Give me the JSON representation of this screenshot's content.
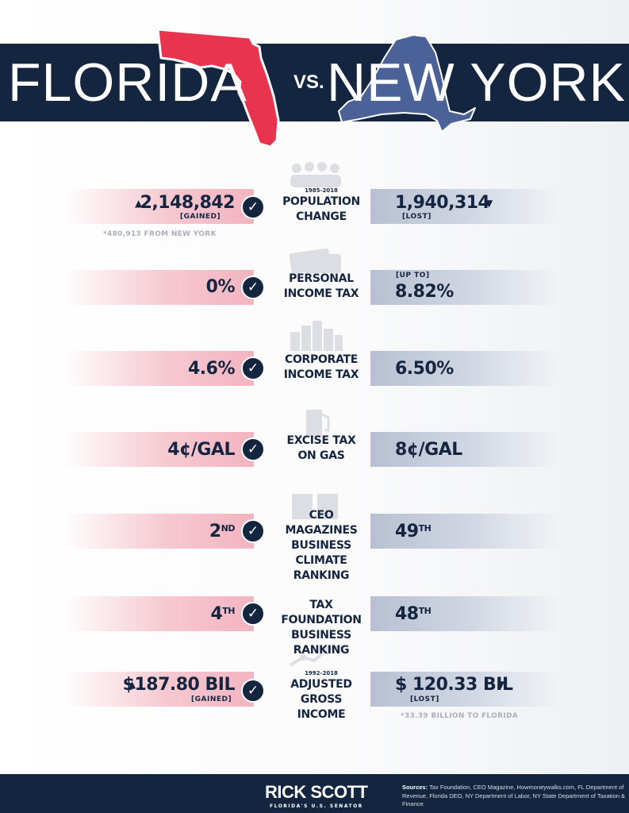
{
  "header": {
    "left_state": "FLORIDA",
    "vs": "VS.",
    "right_state": "NEW YORK",
    "colors": {
      "banner": "#142540",
      "florida_map": "#e8344f",
      "newyork_map": "#4a6298"
    }
  },
  "rows": [
    {
      "label_line1": "POPULATION",
      "label_line2": "CHANGE",
      "years": "1985-2018",
      "icon": "people-icon",
      "fl_value": "2,148,842",
      "fl_sub": "[GAINED]",
      "fl_arrow": "▲",
      "ny_value": "1,940,314",
      "ny_sub": "[LOST]",
      "ny_arrow": "▼",
      "fl_note": "*480,913 FROM NEW YORK"
    },
    {
      "label_line1": "PERSONAL",
      "label_line2": "INCOME TAX",
      "icon": "money-icon",
      "fl_value": "0%",
      "ny_prefix": "[UP TO]",
      "ny_value": "8.82%"
    },
    {
      "label_line1": "CORPORATE",
      "label_line2": "INCOME TAX",
      "icon": "city-icon",
      "fl_value": "4.6%",
      "ny_value": "6.50%"
    },
    {
      "label_line1": "EXCISE TAX",
      "label_line2": "ON GAS",
      "icon": "gas-pump-icon",
      "fl_value": "4¢/GAL",
      "ny_value": "8¢/GAL"
    },
    {
      "label_line1": "CEO MAGAZINES",
      "label_line2": "BUSINESS CLIMATE",
      "label_line3": "RANKING",
      "icon": "magazine-icon",
      "fl_value": "2",
      "fl_sup": "ND",
      "ny_value": "49",
      "ny_sup": "TH"
    },
    {
      "label_line1": "TAX FOUNDATION",
      "label_line2": "BUSINESS RANKING",
      "fl_value": "4",
      "fl_sup": "TH",
      "ny_value": "48",
      "ny_sup": "TH"
    },
    {
      "label_line1": "ADJUSTED GROSS",
      "label_line2": "INCOME",
      "years": "1992-2018",
      "icon": "growth-chart-icon",
      "fl_value": "$187.80 BIL",
      "fl_sub": "[GAINED]",
      "fl_arrow": "▲",
      "ny_value": "$ 120.33 BIL",
      "ny_sub": "[LOST]",
      "ny_arrow": "▼",
      "ny_note": "*33.39 BILLION TO FLORIDA"
    }
  ],
  "check_glyph": "✓",
  "footer": {
    "logo_name": "RICK SCOTT",
    "logo_sub": "FLORIDA'S U.S. SENATOR",
    "sources_label": "Sources:",
    "sources_text": "Tax Foundation, CEO Magazine, Howmoneywalks.com, FL Department of Revenue, Florida DEO, NY Department of Labor, NY State Department of Taxation & Finance."
  }
}
